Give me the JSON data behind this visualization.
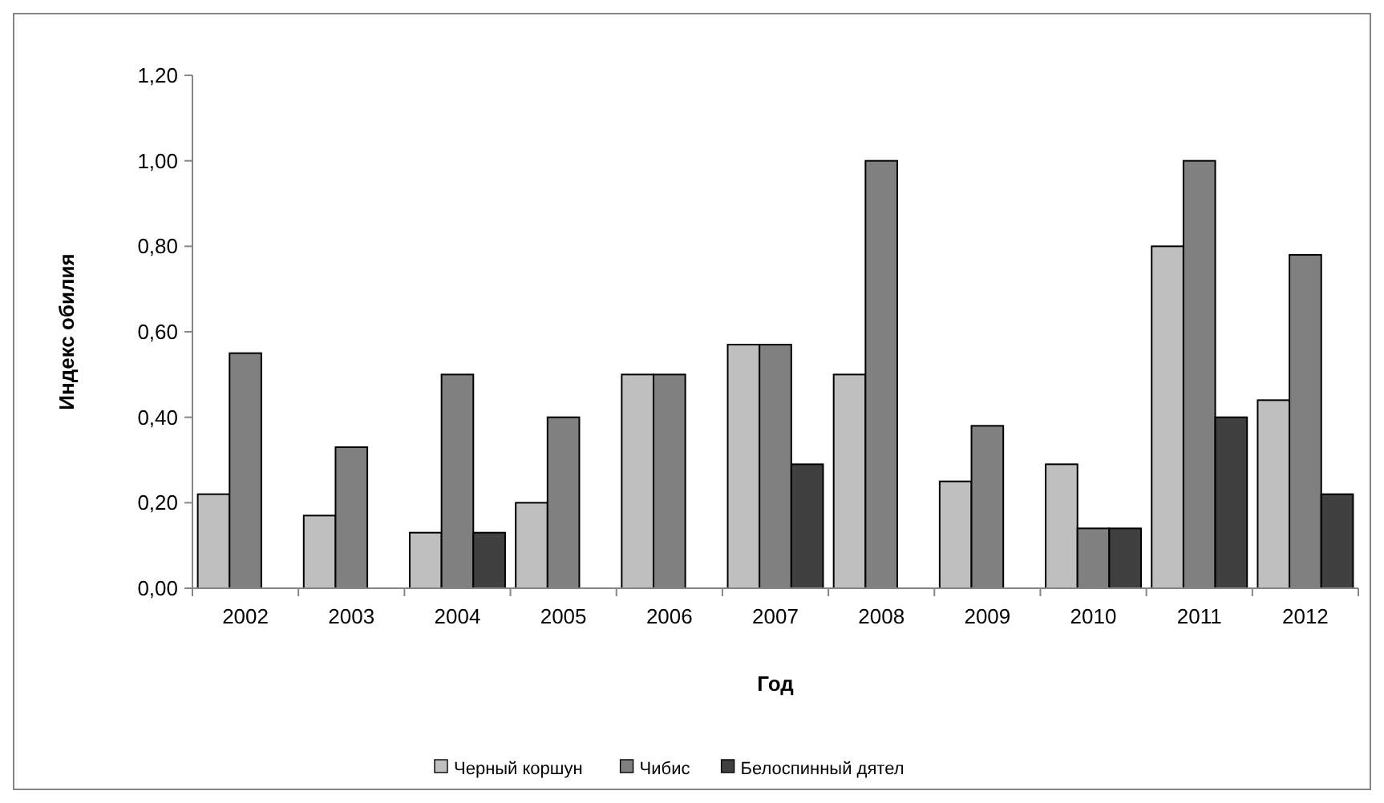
{
  "chart_data": {
    "type": "bar",
    "xlabel": "Год",
    "ylabel": "Индекс обилия",
    "categories": [
      "2002",
      "2003",
      "2004",
      "2005",
      "2006",
      "2007",
      "2008",
      "2009",
      "2010",
      "2011",
      "2012"
    ],
    "series": [
      {
        "name": "Черный коршун",
        "color": "#bfbfbf",
        "values": [
          0.22,
          0.17,
          0.13,
          0.2,
          0.5,
          0.57,
          0.5,
          0.25,
          0.29,
          0.8,
          0.44
        ]
      },
      {
        "name": "Чибис",
        "color": "#808080",
        "values": [
          0.55,
          0.33,
          0.5,
          0.4,
          0.5,
          0.57,
          1.0,
          0.38,
          0.14,
          1.0,
          0.78
        ]
      },
      {
        "name": "Белоспинный дятел",
        "color": "#404040",
        "values": [
          null,
          null,
          0.13,
          null,
          null,
          0.29,
          null,
          null,
          0.14,
          0.4,
          0.22
        ]
      }
    ],
    "ylim": [
      0,
      1.2
    ],
    "yticks": [
      {
        "value": 0,
        "label": "0,00"
      },
      {
        "value": 0.2,
        "label": "0,20"
      },
      {
        "value": 0.4,
        "label": "0,40"
      },
      {
        "value": 0.6,
        "label": "0,60"
      },
      {
        "value": 0.8,
        "label": "0,80"
      },
      {
        "value": 1,
        "label": "1,00"
      },
      {
        "value": 1.2,
        "label": "1,20"
      }
    ],
    "legend": "bottom"
  }
}
